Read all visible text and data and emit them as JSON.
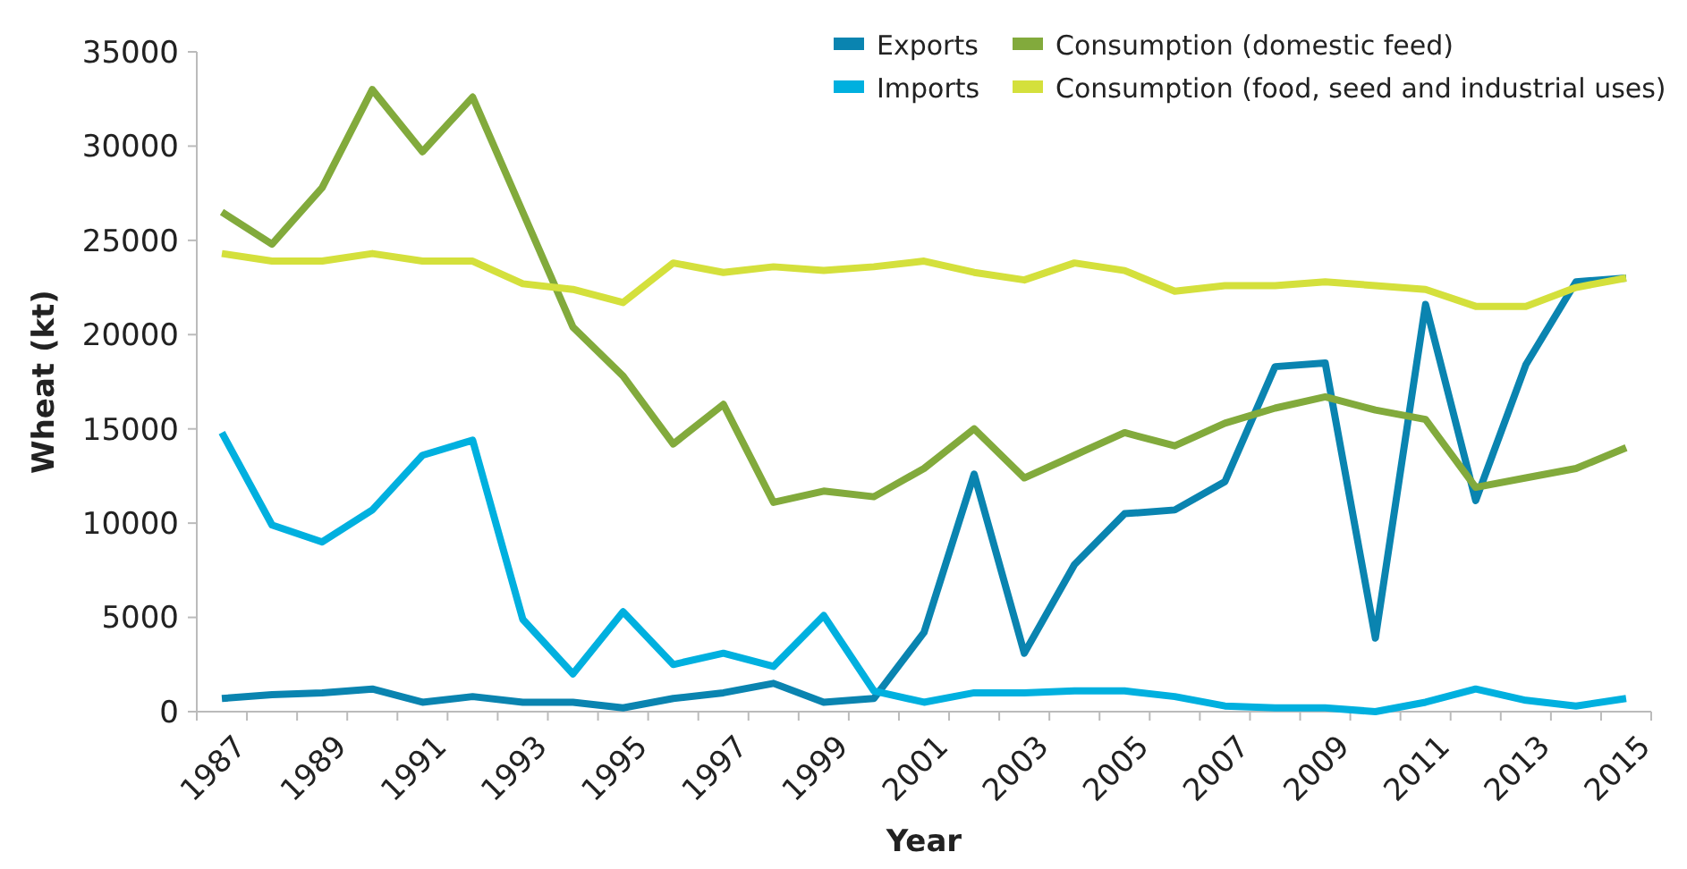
{
  "chart_data": {
    "type": "line",
    "xlabel": "Year",
    "ylabel": "Wheat (kt)",
    "categories": [
      "1987",
      null,
      "1989",
      null,
      "1991",
      null,
      "1993",
      null,
      "1995",
      null,
      "1997",
      null,
      "1999",
      null,
      "2001",
      null,
      "2003",
      null,
      "2005",
      null,
      "2007",
      null,
      "2009",
      null,
      "2011",
      null,
      "2013",
      null,
      "2015"
    ],
    "series": [
      {
        "name": "Exports",
        "color": "#0a84b0",
        "values": [
          700,
          900,
          1000,
          1200,
          500,
          800,
          500,
          500,
          200,
          700,
          1000,
          1500,
          500,
          700,
          4200,
          12600,
          3100,
          7800,
          10500,
          10700,
          12200,
          18300,
          18500,
          3900,
          21600,
          11200,
          18400,
          22800,
          23000
        ]
      },
      {
        "name": "Imports",
        "color": "#00b0df",
        "values": [
          14800,
          9900,
          9000,
          10700,
          13600,
          14400,
          4900,
          2000,
          5300,
          2500,
          3100,
          2400,
          5100,
          1100,
          500,
          1000,
          1000,
          1100,
          1100,
          800,
          300,
          200,
          200,
          0,
          500,
          1200,
          600,
          300,
          700
        ]
      },
      {
        "name": "Consumption (domestic feed)",
        "color": "#82aa3c",
        "values": [
          26500,
          24800,
          27800,
          33000,
          29700,
          32600,
          26500,
          20400,
          17800,
          14200,
          16300,
          11100,
          11700,
          11400,
          12900,
          15000,
          12400,
          13600,
          14800,
          14100,
          15300,
          16100,
          16700,
          16000,
          15500,
          11900,
          12400,
          12900,
          14000
        ]
      },
      {
        "name": "Consumption (food, seed and industrial uses)",
        "color": "#d4e03c",
        "values": [
          24300,
          23900,
          23900,
          24300,
          23900,
          23900,
          22700,
          22400,
          21700,
          23800,
          23300,
          23600,
          23400,
          23600,
          23900,
          23300,
          22900,
          23800,
          23400,
          22300,
          22600,
          22600,
          22800,
          22600,
          22400,
          21500,
          21500,
          22500,
          23000
        ]
      }
    ],
    "ylim": [
      0,
      35000
    ],
    "yticks": [
      0,
      5000,
      10000,
      15000,
      20000,
      25000,
      30000,
      35000
    ],
    "legend": "top right",
    "grid": false,
    "marker": "none",
    "line_style": "solid"
  }
}
